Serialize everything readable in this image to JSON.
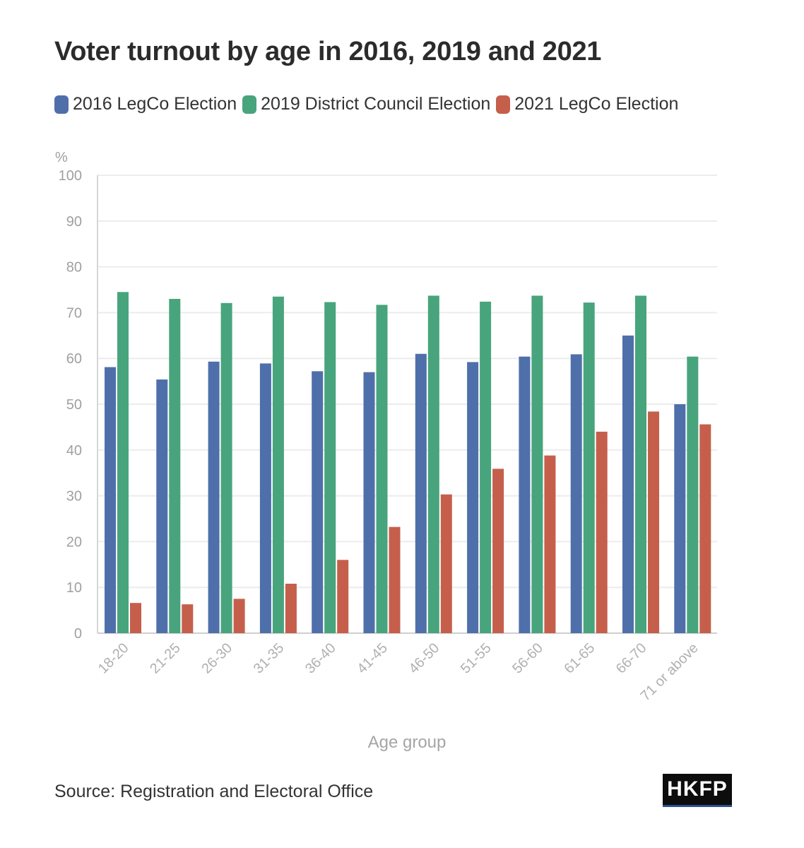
{
  "chart_data": {
    "type": "bar",
    "title": "Voter turnout by age in 2016, 2019 and 2021",
    "ylabel": "%",
    "xlabel": "Age group",
    "ylim": [
      0,
      100
    ],
    "yticks": [
      0,
      10,
      20,
      30,
      40,
      50,
      60,
      70,
      80,
      90,
      100
    ],
    "grid": true,
    "legend_position": "top-left",
    "categories": [
      "18-20",
      "21-25",
      "26-30",
      "31-35",
      "36-40",
      "41-45",
      "46-50",
      "51-55",
      "56-60",
      "61-65",
      "66-70",
      "71 or above"
    ],
    "series": [
      {
        "name": "2016 LegCo Election",
        "color": "#4f6fab",
        "values": [
          58.1,
          55.4,
          59.3,
          58.9,
          57.2,
          57.0,
          61.0,
          59.2,
          60.4,
          60.9,
          65.0,
          50.0
        ]
      },
      {
        "name": "2019 District Council Election",
        "color": "#48a47c",
        "values": [
          74.5,
          73.0,
          72.1,
          73.5,
          72.3,
          71.7,
          73.7,
          72.4,
          73.7,
          72.2,
          73.7,
          60.4
        ]
      },
      {
        "name": "2021 LegCo Election",
        "color": "#c55f4b",
        "values": [
          6.6,
          6.3,
          7.5,
          10.8,
          16.0,
          23.2,
          30.3,
          35.9,
          38.8,
          44.0,
          48.4,
          45.6
        ]
      }
    ]
  },
  "source": "Source: Registration and Electoral Office",
  "logo_text": "HKFP"
}
